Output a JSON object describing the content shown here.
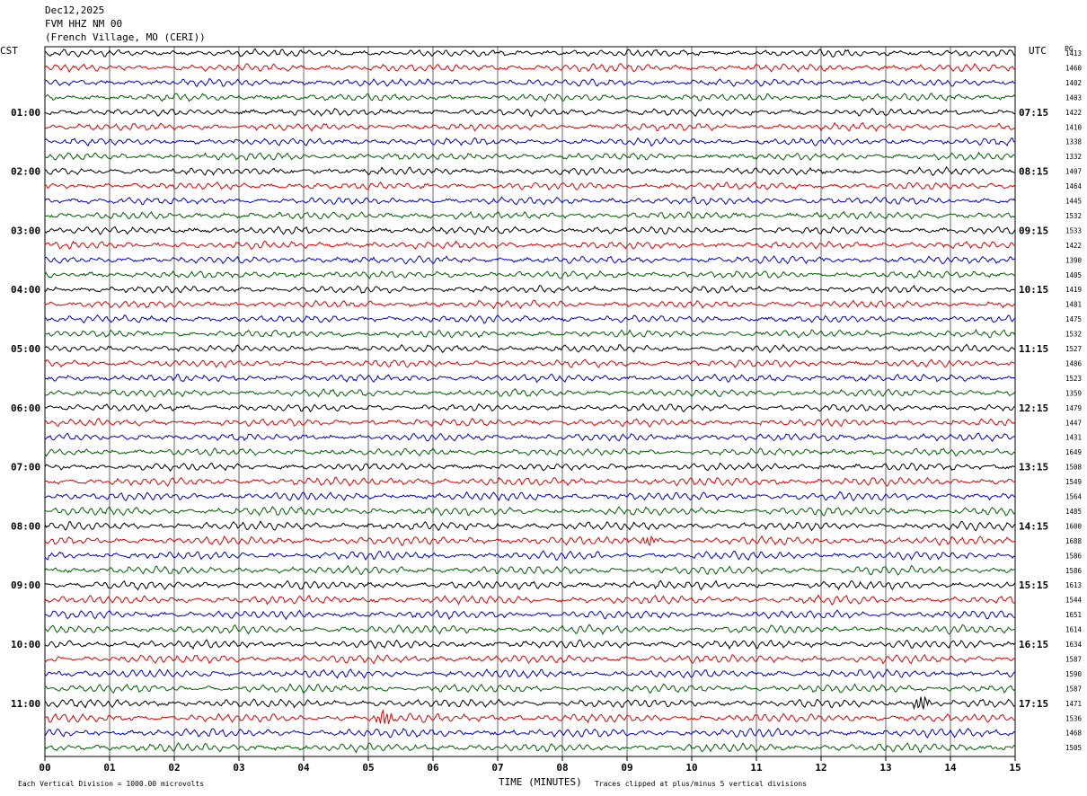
{
  "header": {
    "date": "Dec12,2025",
    "station": "FVM HHZ NM 00",
    "location": "(French Village, MO (CERI))"
  },
  "labels": {
    "left_timezone": "CST",
    "right_timezone": "UTC",
    "pg_header": "PG",
    "xlabel": "TIME (MINUTES)",
    "scale_note": "Each Vertical Division = 1000.00 microvolts",
    "clip_note": "Traces clipped at plus/minus 5 vertical divisions"
  },
  "colors": {
    "trace_cycle": [
      "#000000",
      "#e00000",
      "#0000cc",
      "#006000"
    ],
    "grid": "#000000",
    "background": "#ffffff"
  },
  "chart_data": {
    "type": "line",
    "description_free": true,
    "trace_count": 48,
    "rows_per_hour": 4,
    "x": {
      "label": "TIME (MINUTES)",
      "range": [
        0,
        15
      ],
      "ticks": [
        "00",
        "01",
        "02",
        "03",
        "04",
        "05",
        "06",
        "07",
        "08",
        "09",
        "10",
        "11",
        "12",
        "13",
        "14",
        "15"
      ]
    },
    "left_hour_labels": [
      {
        "row": 4,
        "label": "01:00"
      },
      {
        "row": 8,
        "label": "02:00"
      },
      {
        "row": 12,
        "label": "03:00"
      },
      {
        "row": 16,
        "label": "04:00"
      },
      {
        "row": 20,
        "label": "05:00"
      },
      {
        "row": 24,
        "label": "06:00"
      },
      {
        "row": 28,
        "label": "07:00"
      },
      {
        "row": 32,
        "label": "08:00"
      },
      {
        "row": 36,
        "label": "09:00"
      },
      {
        "row": 40,
        "label": "10:00"
      },
      {
        "row": 44,
        "label": "11:00"
      }
    ],
    "right_hour_labels": [
      {
        "row": 4,
        "label": "07:15"
      },
      {
        "row": 8,
        "label": "08:15"
      },
      {
        "row": 12,
        "label": "09:15"
      },
      {
        "row": 16,
        "label": "10:15"
      },
      {
        "row": 20,
        "label": "11:15"
      },
      {
        "row": 24,
        "label": "12:15"
      },
      {
        "row": 28,
        "label": "13:15"
      },
      {
        "row": 32,
        "label": "14:15"
      },
      {
        "row": 36,
        "label": "15:15"
      },
      {
        "row": 40,
        "label": "16:15"
      },
      {
        "row": 44,
        "label": "17:15"
      }
    ],
    "pg_values": [
      "1413",
      "1460",
      "1402",
      "1403",
      "1422",
      "1410",
      "1338",
      "1332",
      "1407",
      "1464",
      "1445",
      "1532",
      "1533",
      "1422",
      "1390",
      "1405",
      "1419",
      "1481",
      "1475",
      "1532",
      "1527",
      "1486",
      "1523",
      "1359",
      "1479",
      "1447",
      "1431",
      "1649",
      "1508",
      "1549",
      "1564",
      "1485",
      "1600",
      "1688",
      "1586",
      "1586",
      "1613",
      "1544",
      "1651",
      "1614",
      "1634",
      "1587",
      "1590",
      "1587",
      "1471",
      "1536",
      "1468",
      "1505"
    ],
    "events": [
      {
        "row": 45,
        "minute": 5.25,
        "amplitude": "large"
      },
      {
        "row": 44,
        "minute": 13.55,
        "amplitude": "large"
      },
      {
        "row": 33,
        "minute": 9.35,
        "amplitude": "medium"
      }
    ]
  }
}
